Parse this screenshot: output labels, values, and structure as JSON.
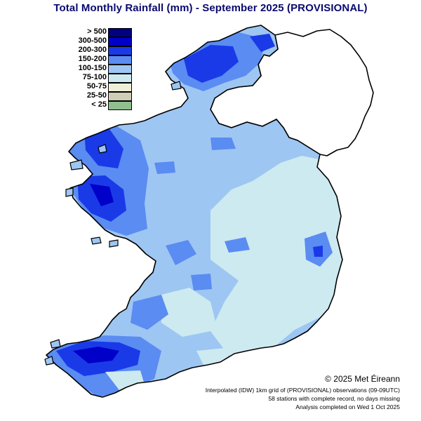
{
  "title": "Total Monthly Rainfall (mm) - September 2025  (PROVISIONAL)",
  "legend": [
    {
      "label": "> 500",
      "color": "#000080"
    },
    {
      "label": "300-500",
      "color": "#0000c8"
    },
    {
      "label": "200-300",
      "color": "#1a3ae8"
    },
    {
      "label": "150-200",
      "color": "#5a8cf2"
    },
    {
      "label": "100-150",
      "color": "#9ec6f2"
    },
    {
      "label": "75-100",
      "color": "#cdeaf0"
    },
    {
      "label": "50-75",
      "color": "#f0efd8"
    },
    {
      "label": "25-50",
      "color": "#cfcdb6"
    },
    {
      "label": "< 25",
      "color": "#8fbf8f"
    }
  ],
  "copyright": "© 2025 Met Éireann",
  "notes": [
    "Interpolated (IDW) 1km grid of  (PROVISIONAL) observations (09-09UTC)",
    "58 stations with complete record, no days missing",
    "Analysis completed on Wed 1 Oct 2025"
  ]
}
